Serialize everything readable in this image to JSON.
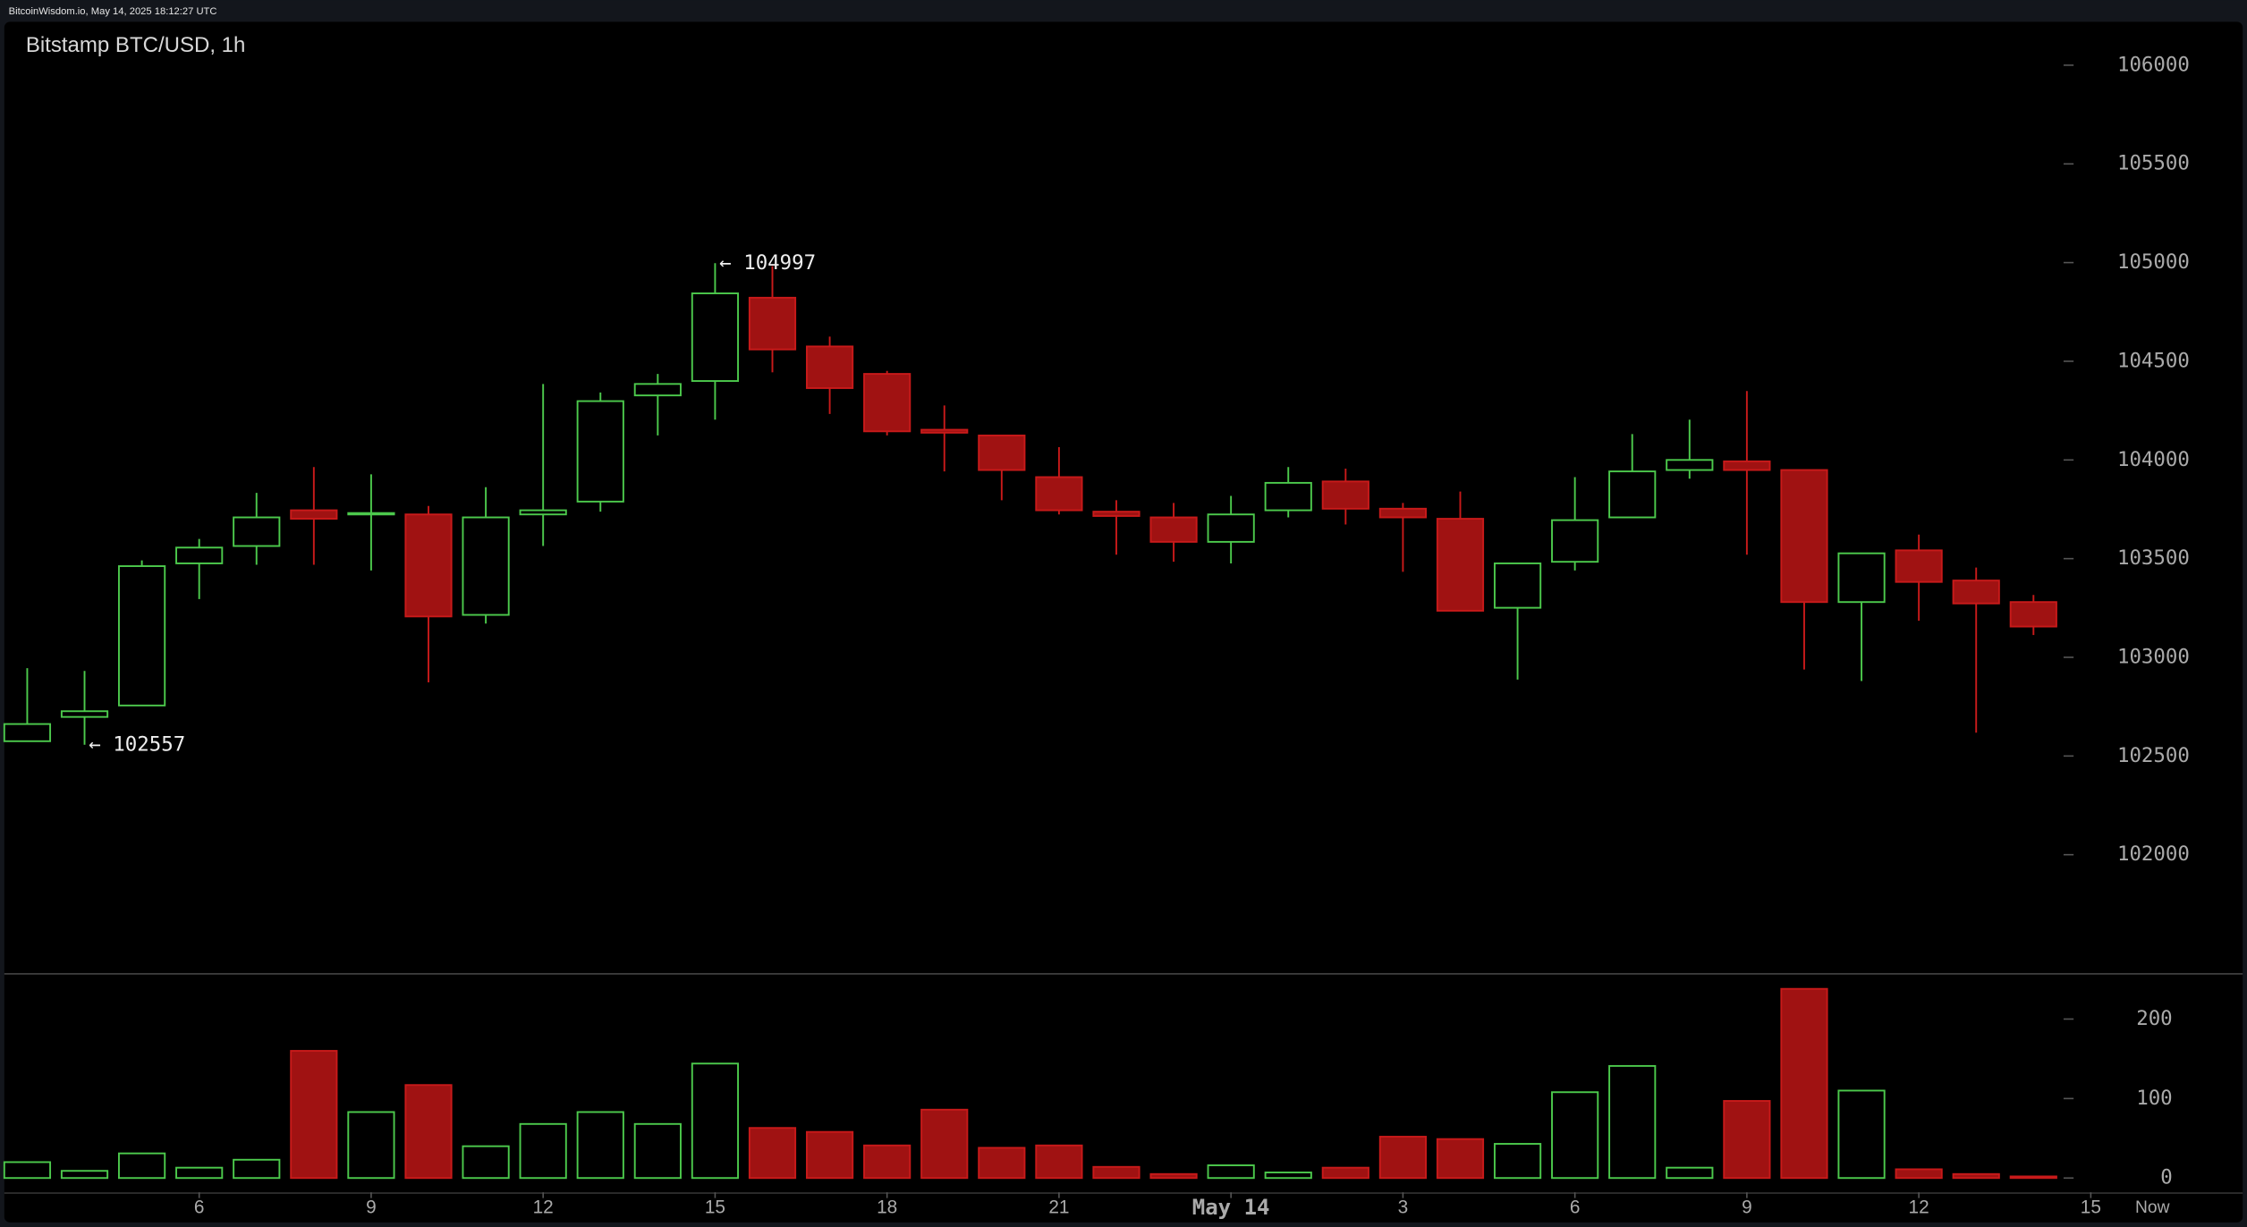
{
  "header": {
    "status": "BitcoinWisdom.io, May 14, 2025 18:12:27 UTC"
  },
  "chart_data": {
    "type": "candlestick",
    "title": "Bitstamp BTC/USD, 1h",
    "up_color": "#4cc94c",
    "down_color": "#a01212",
    "ylim": [
      101400,
      106220
    ],
    "yticks": [
      102000,
      102500,
      103000,
      103500,
      104000,
      104500,
      105000,
      105500,
      106000
    ],
    "volume_ylim": [
      -18,
      256
    ],
    "volume_ticks": [
      0,
      100,
      200
    ],
    "xticks": [
      {
        "value": 3,
        "label": "6"
      },
      {
        "value": 6,
        "label": "9"
      },
      {
        "value": 9,
        "label": "12"
      },
      {
        "value": 12,
        "label": "15"
      },
      {
        "value": 15,
        "label": "18"
      },
      {
        "value": 18,
        "label": "21"
      },
      {
        "value": 21,
        "label": "May 14"
      },
      {
        "value": 24,
        "label": "3"
      },
      {
        "value": 27,
        "label": "6"
      },
      {
        "value": 30,
        "label": "9"
      },
      {
        "value": 33,
        "label": "12"
      },
      {
        "value": 36,
        "label": "15"
      }
    ],
    "now_label": "Now",
    "open": [
      102575,
      102698,
      102756,
      103476,
      103564,
      103745,
      103724,
      103724,
      103215,
      103724,
      103789,
      104327,
      104400,
      104822,
      104575,
      104436,
      104153,
      104124,
      103913,
      103738,
      103709,
      103585,
      103745,
      103891,
      103753,
      103702,
      103251,
      103484,
      103709,
      103949,
      103993,
      103949,
      103280,
      103542,
      103389,
      103280
    ],
    "high": [
      102945,
      102931,
      103491,
      103600,
      103833,
      103964,
      103927,
      103767,
      103862,
      104385,
      104342,
      104436,
      104997,
      104982,
      104625,
      104451,
      104276,
      104124,
      104065,
      103796,
      103782,
      103818,
      103964,
      103956,
      103782,
      103840,
      103476,
      103913,
      104131,
      104204,
      104349,
      103949,
      103527,
      103622,
      103455,
      103316
    ],
    "low": [
      102575,
      102557,
      102756,
      103295,
      103469,
      103469,
      103440,
      102873,
      103171,
      103564,
      103738,
      104124,
      104204,
      104444,
      104233,
      104124,
      103942,
      103796,
      103724,
      103520,
      103484,
      103476,
      103709,
      103673,
      103433,
      103236,
      102887,
      103440,
      103709,
      103905,
      103520,
      102938,
      102880,
      103185,
      102618,
      103113
    ],
    "close": [
      102662,
      102727,
      103462,
      103556,
      103709,
      103702,
      103731,
      103207,
      103709,
      103745,
      104298,
      104385,
      104844,
      104560,
      104364,
      104145,
      104138,
      103949,
      103745,
      103716,
      103585,
      103724,
      103884,
      103753,
      103709,
      103236,
      103476,
      103695,
      103942,
      104000,
      103949,
      103280,
      103527,
      103382,
      103273,
      103156
    ],
    "volume": [
      20,
      9,
      31,
      13,
      23,
      160,
      83,
      117,
      40,
      68,
      83,
      68,
      144,
      63,
      58,
      41,
      86,
      38,
      41,
      14,
      5,
      16,
      7,
      13,
      52,
      49,
      43,
      108,
      141,
      13,
      97,
      238,
      110,
      11,
      5,
      2
    ],
    "annotations": [
      {
        "text": "← 104997",
        "value": 104997
      },
      {
        "text": "← 102557",
        "value": 102557
      }
    ]
  }
}
